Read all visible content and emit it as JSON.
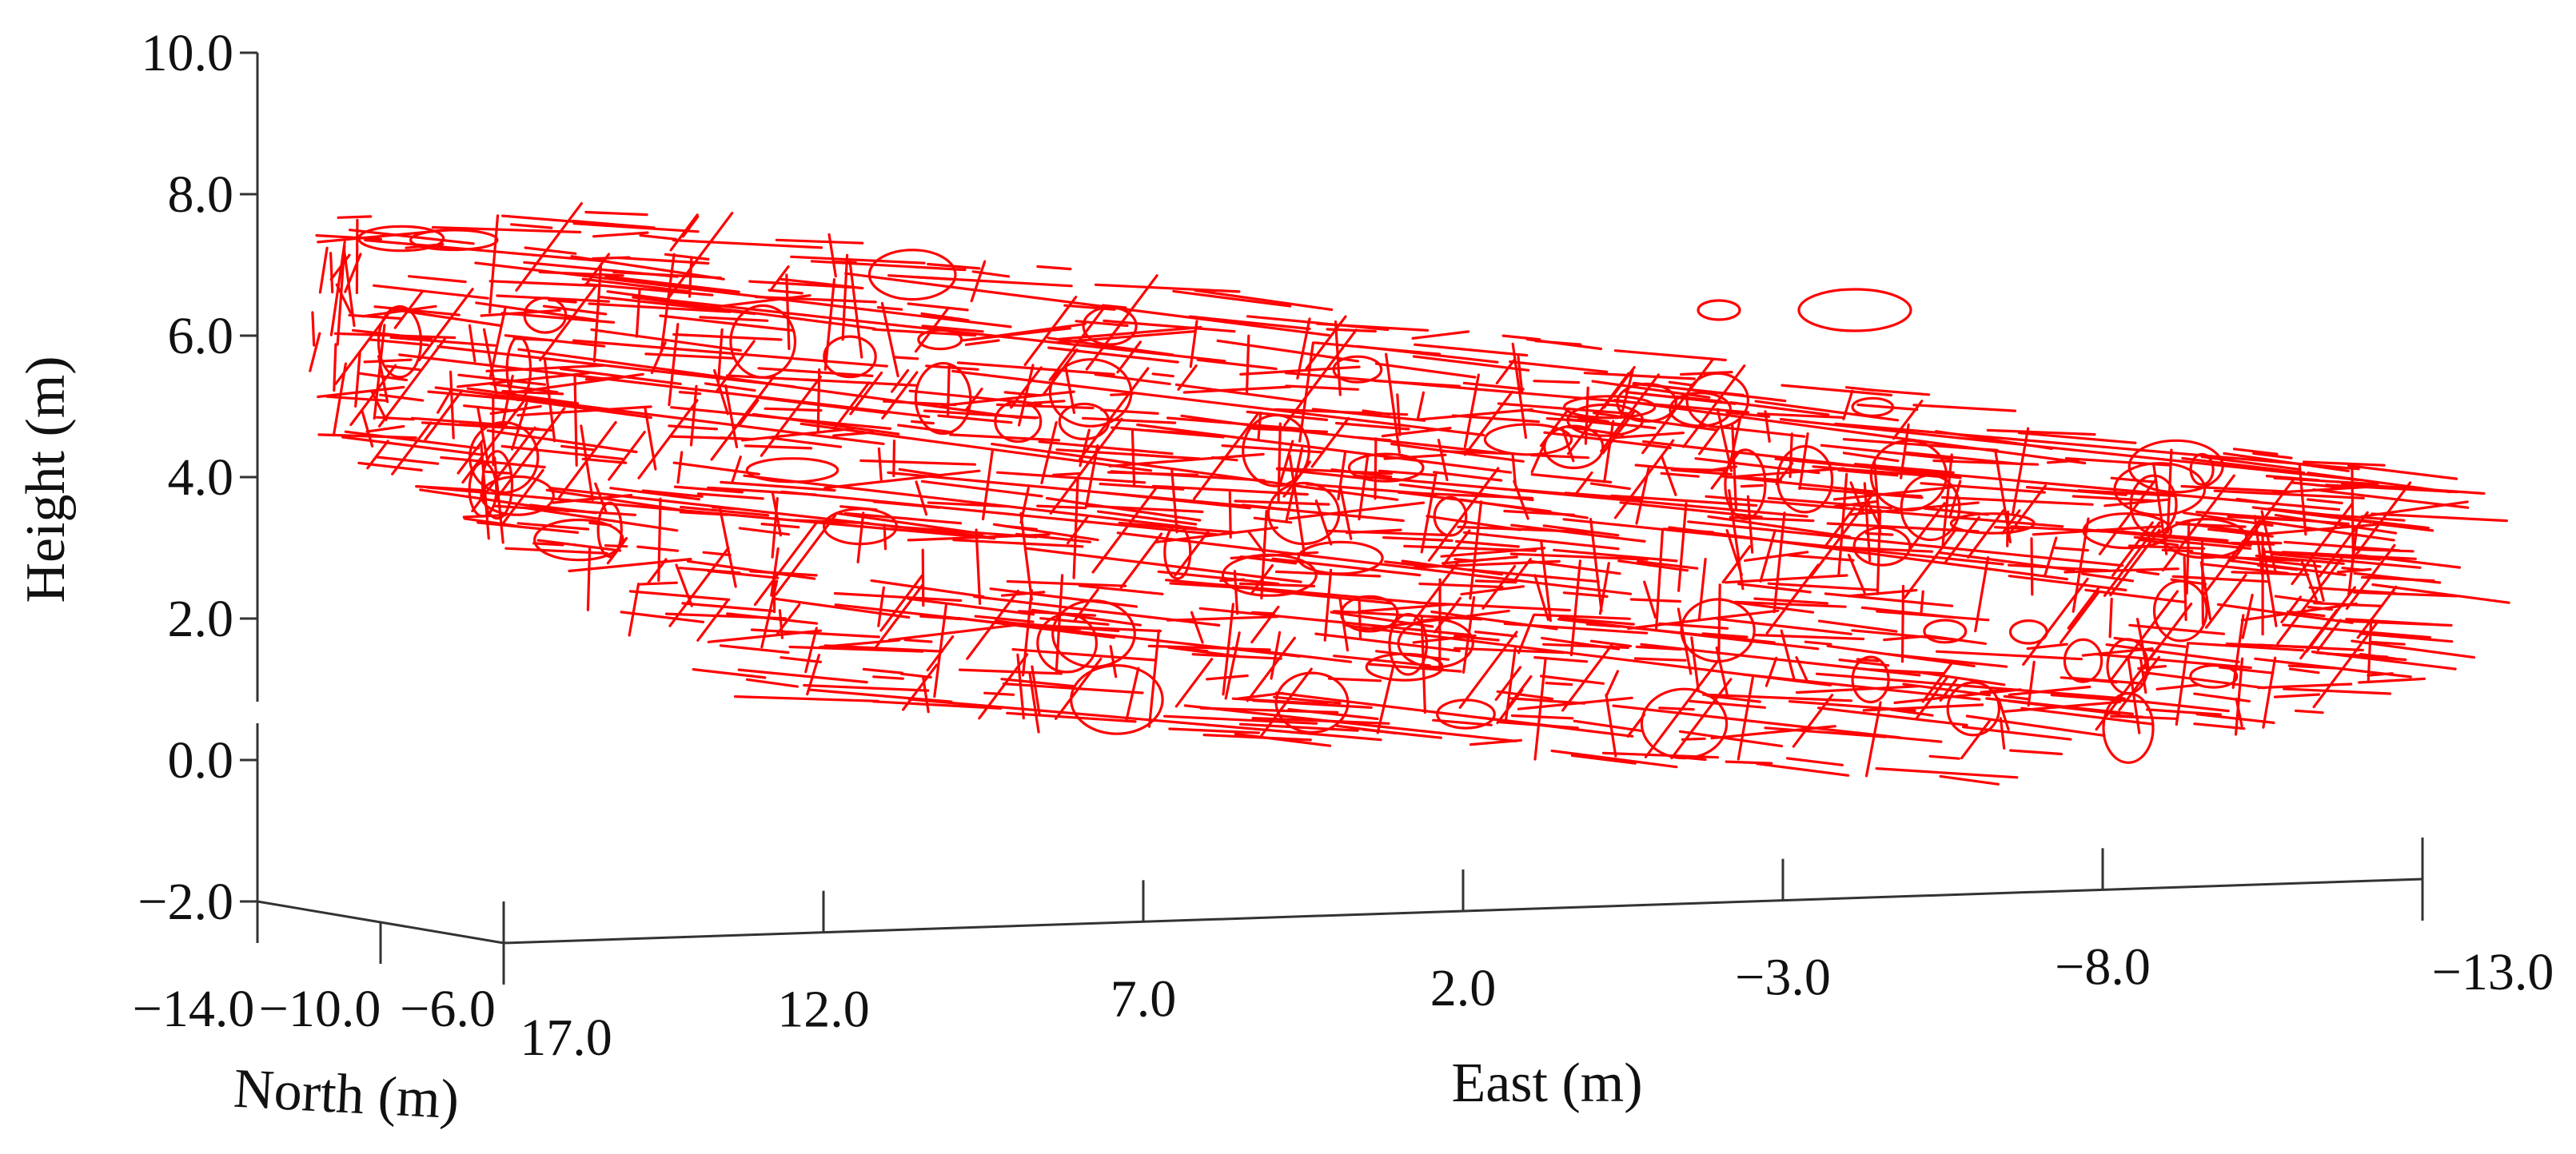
{
  "chart_data": {
    "type": "scatter",
    "title": "",
    "colors": {
      "traces": "#ff0000",
      "axes": "#333333"
    },
    "axes": {
      "height": {
        "label": "Height (m)",
        "ticks": [
          "10.0",
          "8.0",
          "6.0",
          "4.0",
          "2.0",
          "0.0",
          "−2.0"
        ],
        "range": [
          -2.0,
          10.0
        ]
      },
      "east": {
        "label": "East (m)",
        "ticks": [
          "17.0",
          "12.0",
          "7.0",
          "2.0",
          "−3.0",
          "−8.0",
          "−13.0"
        ],
        "range": [
          17.0,
          -13.0
        ]
      },
      "north": {
        "label": "North (m)",
        "ticks": [
          "−14.0",
          "−10.0",
          "−6.0"
        ],
        "range": [
          -14.0,
          -6.0
        ]
      }
    },
    "grid": false,
    "legend": "none",
    "description_of_marks": "Red 3D line traces (fracture/discontinuity outlines) on a rock face, spanning East 17.0 to -13.0 m and Height roughly 0.0 to 8.5 m."
  }
}
